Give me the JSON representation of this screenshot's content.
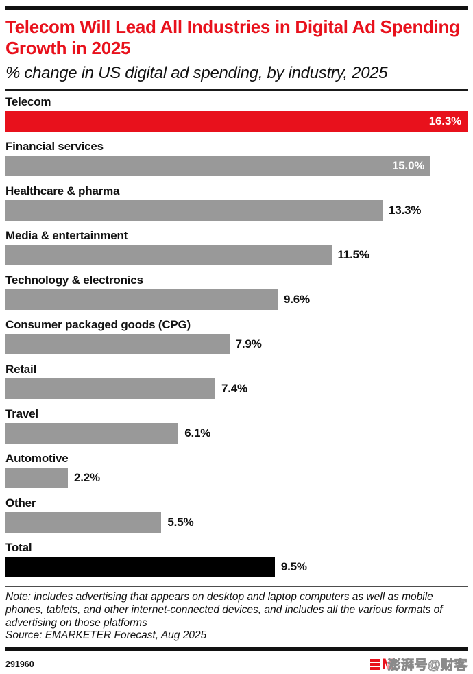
{
  "header": {
    "title": "Telecom Will Lead All Industries in Digital Ad Spending Growth in 2025",
    "subtitle": "% change in US digital ad spending, by industry, 2025"
  },
  "chart_data": {
    "type": "bar",
    "orientation": "horizontal",
    "title": "Telecom Will Lead All Industries in Digital Ad Spending Growth in 2025",
    "xlabel": "% change in US digital ad spending",
    "categories": [
      "Telecom",
      "Financial services",
      "Healthcare & pharma",
      "Media & entertainment",
      "Technology & electronics",
      "Consumer packaged goods (CPG)",
      "Retail",
      "Travel",
      "Automotive",
      "Other",
      "Total"
    ],
    "values": [
      16.3,
      15.0,
      13.3,
      11.5,
      9.6,
      7.9,
      7.4,
      6.1,
      2.2,
      5.5,
      9.5
    ],
    "value_labels": [
      "16.3%",
      "15.0%",
      "13.3%",
      "11.5%",
      "9.6%",
      "7.9%",
      "7.4%",
      "6.1%",
      "2.2%",
      "5.5%",
      "9.5%"
    ],
    "xlim": [
      0,
      16.3
    ],
    "grid": false,
    "legend": false,
    "colors": {
      "highlight": "#e8111c",
      "default": "#999999",
      "total": "#000000"
    }
  },
  "footnote": {
    "note": "Note: includes advertising that appears on desktop and laptop computers as well as mobile phones, tablets, and other internet-connected devices, and includes all the various formats of advertising on those platforms",
    "source": "Source: EMARKETER Forecast, Aug 2025"
  },
  "footer": {
    "chart_id": "291960",
    "logo_mark": "M",
    "watermark": "澎湃号@财客"
  }
}
